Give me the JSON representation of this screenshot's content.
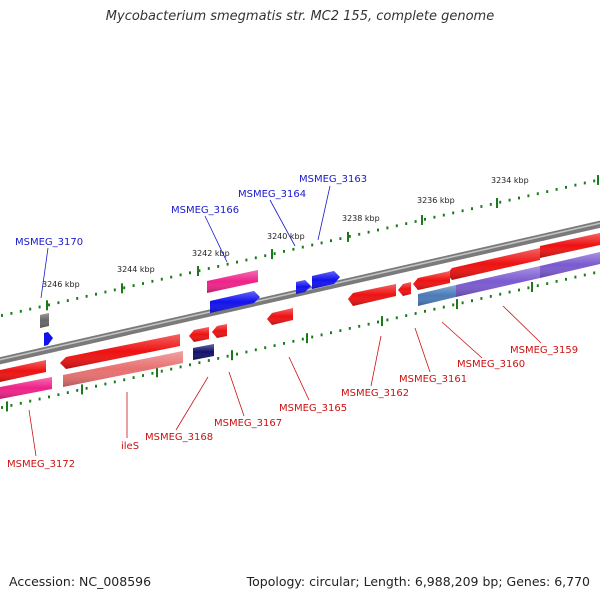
{
  "title": "Mycobacterium smegmatis str. MC2 155, complete genome",
  "footer": {
    "accession": "Accession: NC_008596",
    "topology": "Topology: circular; Length: 6,988,209 bp; Genes: 6,770"
  },
  "ticks": [
    "3234 kbp",
    "3236 kbp",
    "3238 kbp",
    "3240 kbp",
    "3242 kbp",
    "3244 kbp",
    "3246 kbp"
  ],
  "gene_labels": {
    "plus": [
      "MSMEG_3163",
      "MSMEG_3164",
      "MSMEG_3166",
      "MSMEG_3170"
    ],
    "minus": [
      "MSMEG_3159",
      "MSMEG_3160",
      "MSMEG_3161",
      "MSMEG_3162",
      "MSMEG_3165",
      "MSMEG_3167",
      "MSMEG_3168",
      "ileS",
      "MSMEG_3172"
    ]
  },
  "colors": {
    "plus_label": "#1a1acc",
    "minus_label": "#cc1111",
    "backbone": "#7a7a7a",
    "tick": "#1a7a1a",
    "gene_red": "#ee1111",
    "gene_pink": "#ee2288",
    "gene_blue": "#1111ee",
    "gene_navy": "#11116a",
    "gene_purple": "#7a5ad0",
    "gene_steel": "#4a7ab8",
    "gene_salmon": "#e87070",
    "gene_gray": "#666666"
  }
}
